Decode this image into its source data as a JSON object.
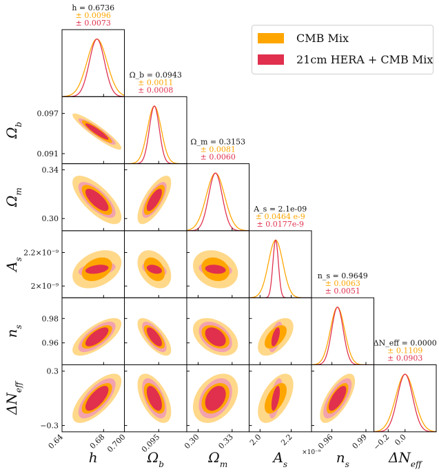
{
  "chart_data": {
    "type": "corner-triangle",
    "title": "",
    "legend_position": "top-right",
    "series": [
      {
        "name": "CMB Mix",
        "color": "#ffa500",
        "color_outer": "#ffd88a"
      },
      {
        "name": "21cm HERA + CMB Mix",
        "color": "#e0304e",
        "color_outer": "#f2a3ae"
      }
    ],
    "parameters": [
      {
        "key": "h",
        "axis_label": "h",
        "summary": "h = 0.6736",
        "mean": 0.6736,
        "err": [
          0.0096,
          0.0073
        ],
        "err_text": [
          "± 0.0096",
          "± 0.0073"
        ],
        "range": [
          0.64,
          0.7
        ],
        "ticks": [
          0.64,
          0.68,
          0.7
        ],
        "tick_labels": [
          "0.64",
          "0.68",
          "0.700"
        ]
      },
      {
        "key": "omega_b",
        "axis_label": "Ω_b",
        "summary": "Ω_b = 0.0943",
        "mean": 0.0943,
        "err": [
          0.0011,
          0.0008
        ],
        "err_text": [
          "± 0.0011",
          "± 0.0008"
        ],
        "range": [
          0.0895,
          0.0995
        ],
        "ticks": [
          0.095
        ],
        "tick_labels": [
          "0.095"
        ],
        "y_ticks": [
          0.091,
          0.097
        ],
        "y_tick_labels": [
          "0.091",
          "0.097"
        ]
      },
      {
        "key": "omega_m",
        "axis_label": "Ω_m",
        "summary": "Ω_m = 0.3153",
        "mean": 0.3153,
        "err": [
          0.0081,
          0.006
        ],
        "err_text": [
          "± 0.0081",
          "± 0.0060"
        ],
        "range": [
          0.29,
          0.345
        ],
        "ticks": [
          0.3,
          0.33
        ],
        "tick_labels": [
          "0.30",
          "0.33"
        ],
        "y_ticks": [
          0.3,
          0.34
        ],
        "y_tick_labels": [
          "0.30",
          "0.34"
        ]
      },
      {
        "key": "A_s",
        "axis_label": "A_s",
        "summary": "A_s = 2.1e-09",
        "mean": 2.1,
        "err": [
          0.0464,
          0.0177
        ],
        "err_text": [
          "± 0.0464 e-9",
          "± 0.0177e-9"
        ],
        "range": [
          1.93,
          2.33
        ],
        "ticks": [
          2.0,
          2.2
        ],
        "tick_labels": [
          "2.0",
          "2.2"
        ],
        "y_ticks": [
          2.0,
          2.2
        ],
        "y_tick_labels": [
          "2×10⁻⁹",
          "2.2×10⁻⁹"
        ],
        "offset_label": "×10⁻⁹"
      },
      {
        "key": "n_s",
        "axis_label": "n_s",
        "summary": "n_s = 0.9649",
        "mean": 0.9649,
        "err": [
          0.0063,
          0.0051
        ],
        "err_text": [
          "± 0.0063",
          "± 0.0051"
        ],
        "range": [
          0.942,
          0.997
        ],
        "ticks": [
          0.96,
          0.99
        ],
        "tick_labels": [
          "0.96",
          "0.99"
        ],
        "y_ticks": [
          0.96,
          0.98
        ],
        "y_tick_labels": [
          "0.96",
          "0.98"
        ]
      },
      {
        "key": "dNeff",
        "axis_label": "ΔN_eff",
        "summary": "ΔN_eff = 0.0000",
        "mean": 0.0,
        "err": [
          0.1109,
          0.0903
        ],
        "err_text": [
          "± 0.1109",
          "± 0.0903"
        ],
        "range": [
          -0.37,
          0.37
        ],
        "ticks": [
          -0.2,
          0.0
        ],
        "tick_labels": [
          "−0.2",
          "0.0"
        ],
        "y_ticks": [
          -0.3,
          0.3
        ],
        "y_tick_labels": [
          "−0.3",
          "0.3"
        ]
      }
    ],
    "correlations": {
      "1,0": -0.92,
      "2,0": -0.72,
      "2,1": 0.72,
      "3,0": 0.35,
      "3,1": -0.35,
      "3,2": -0.2,
      "4,0": 0.7,
      "4,1": -0.7,
      "4,2": -0.4,
      "4,3": 0.55,
      "5,0": 0.7,
      "5,1": -0.55,
      "5,2": 0.35,
      "5,3": 0.55,
      "5,4": 0.7
    }
  }
}
